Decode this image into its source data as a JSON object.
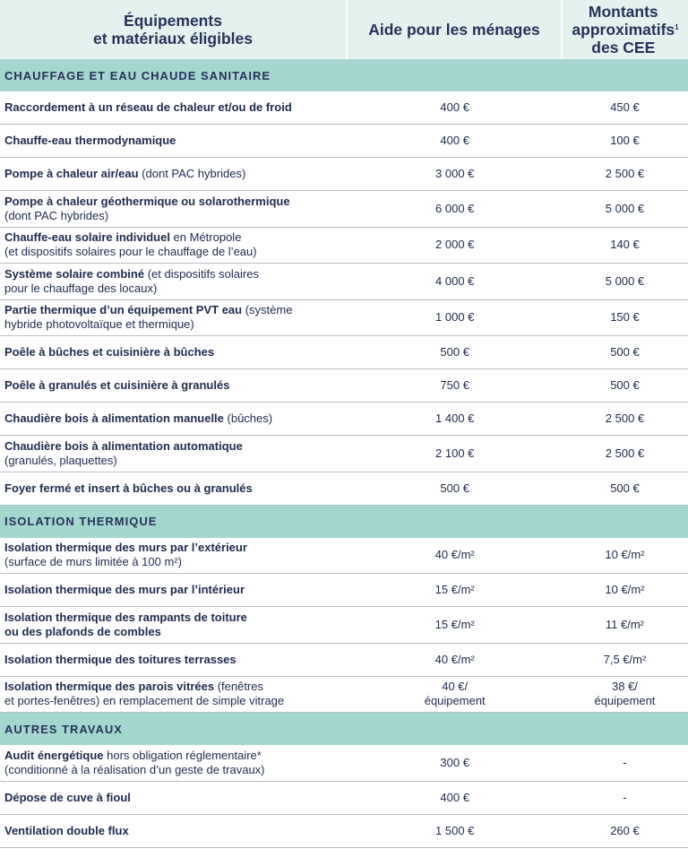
{
  "header": {
    "col1": "Équipements\net matériaux éligibles",
    "col2": "Aide pour les ménages",
    "col3": "Montants\napproximatifs\ndes CEE",
    "col3_note": "1"
  },
  "sections": [
    {
      "title": "CHAUFFAGE ET EAU CHAUDE SANITAIRE",
      "rows": [
        {
          "bold": "Raccordement à un réseau de chaleur et/ou de froid",
          "rest": "",
          "aide": "400 €",
          "cee": "450 €"
        },
        {
          "bold": "Chauffe-eau thermodynamique",
          "rest": "",
          "aide": "400 €",
          "cee": "100 €"
        },
        {
          "bold": "Pompe à chaleur air/eau",
          "rest": "  (dont PAC hybrides)",
          "aide": "3 000 €",
          "cee": "2 500 €"
        },
        {
          "bold": "Pompe à chaleur géothermique ou solarothermique",
          "rest": "\n(dont PAC hybrides)",
          "aide": "6 000 €",
          "cee": "5 000 €"
        },
        {
          "bold": "Chauffe-eau solaire individuel",
          "rest": " en Métropole\n(et dispositifs solaires pour le chauffage de l’eau)",
          "aide": "2 000 €",
          "cee": "140 €"
        },
        {
          "bold": "Système solaire combiné",
          "rest": " (et dispositifs solaires\npour le chauffage des locaux)",
          "aide": "4 000 €",
          "cee": "5 000 €"
        },
        {
          "bold": "Partie thermique d’un équipement PVT eau",
          "rest": " (système\nhybride photovoltaïque et thermique)",
          "aide": "1 000 €",
          "cee": "150 €"
        },
        {
          "bold": "Poêle à bûches et cuisinière à bûches",
          "rest": "",
          "aide": "500 €",
          "cee": "500 €"
        },
        {
          "bold": "Poêle à granulés et cuisinière à granulés",
          "rest": "",
          "aide": "750 €",
          "cee": "500 €"
        },
        {
          "bold": "Chaudière bois à alimentation manuelle",
          "rest": " (bûches)",
          "aide": "1 400 €",
          "cee": "2 500 €"
        },
        {
          "bold": "Chaudière bois à alimentation automatique",
          "rest": "\n(granulés, plaquettes)",
          "aide": "2 100 €",
          "cee": "2 500 €"
        },
        {
          "bold": "Foyer fermé et insert à bûches ou à granulés",
          "rest": "",
          "aide": "500 €",
          "cee": "500 €"
        }
      ]
    },
    {
      "title": "ISOLATION THERMIQUE",
      "rows": [
        {
          "bold": "Isolation thermique des murs par l’extérieur",
          "rest": "\n(surface de murs limitée à 100 m²)",
          "aide": "40 €/m²",
          "cee": "10 €/m²"
        },
        {
          "bold": "Isolation thermique des murs par l’intérieur",
          "rest": "",
          "aide": "15 €/m²",
          "cee": "10 €/m²"
        },
        {
          "bold": "Isolation thermique des rampants de toiture\nou des plafonds de combles",
          "rest": "",
          "aide": "15 €/m²",
          "cee": "11 €/m²"
        },
        {
          "bold": "Isolation thermique des toitures terrasses",
          "rest": "",
          "aide": "40 €/m²",
          "cee": "7,5 €/m²"
        },
        {
          "bold": "Isolation thermique des parois vitrées",
          "rest": " (fenêtres\net portes-fenêtres) en remplacement de simple vitrage",
          "aide": "40 €/\néquipement",
          "cee": "38 €/\néquipement"
        }
      ]
    },
    {
      "title": "AUTRES TRAVAUX",
      "rows": [
        {
          "bold": "Audit énergétique",
          "rest": " hors obligation réglementaire*\n(conditionné à la réalisation d’un geste de travaux)",
          "aide": "300 €",
          "cee": "-"
        },
        {
          "bold": "Dépose de cuve à fioul",
          "rest": "",
          "aide": "400 €",
          "cee": "-"
        },
        {
          "bold": "Ventilation double flux",
          "rest": "",
          "aide": "1 500 €",
          "cee": "260 €"
        }
      ]
    }
  ],
  "colors": {
    "header_bg": "#e4f2ef",
    "section_bg": "#a5d6cf",
    "text": "#1f2a4d"
  }
}
